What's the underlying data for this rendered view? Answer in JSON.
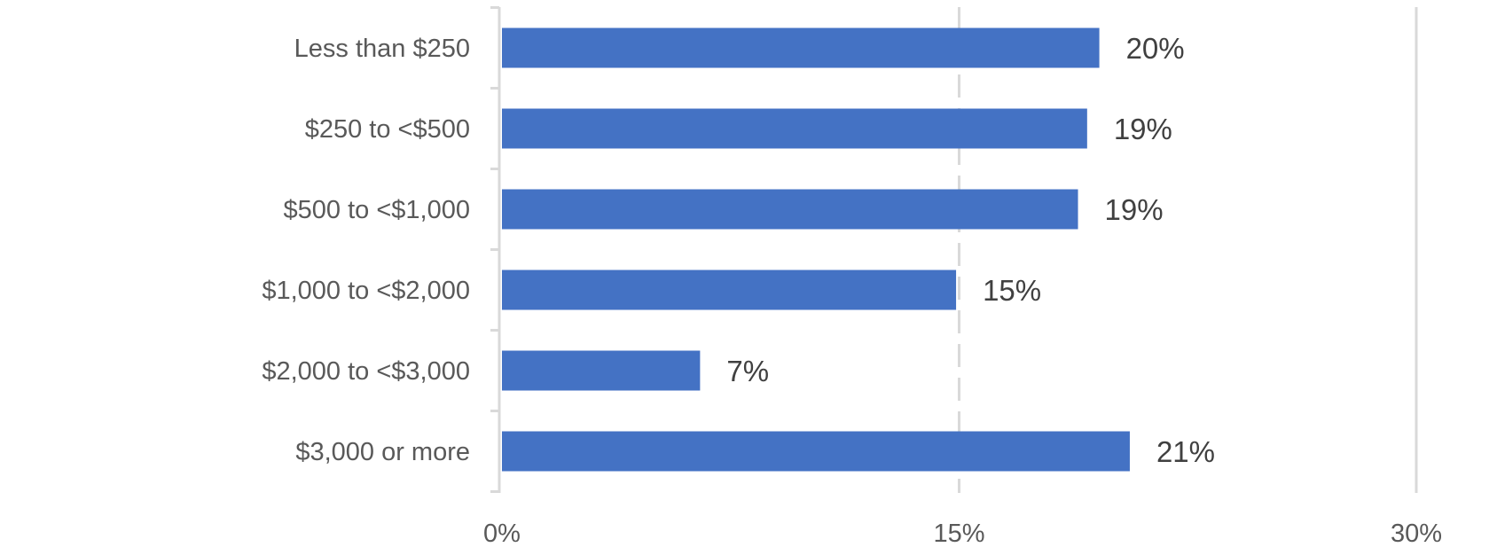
{
  "chart_data": {
    "type": "bar",
    "orientation": "horizontal",
    "categories": [
      "Less than $250",
      "$250 to <$500",
      "$500 to <$1,000",
      "$1,000 to <$2,000",
      "$2,000 to <$3,000",
      "$3,000 or more"
    ],
    "values": [
      19.6,
      19.2,
      18.9,
      14.9,
      6.5,
      20.6
    ],
    "data_labels": [
      "20%",
      "19%",
      "19%",
      "15%",
      "7%",
      "21%"
    ],
    "xlim": [
      0,
      30
    ],
    "ticks": [
      0,
      15,
      30
    ],
    "tick_labels": [
      "0%",
      "15%",
      "30%"
    ],
    "title": "",
    "xlabel": "",
    "ylabel": "",
    "grid": true,
    "legend": "none",
    "colors": {
      "bar": "#4472C4",
      "gridline": "#D9D9D9",
      "axis": "#D9D9D9"
    }
  }
}
